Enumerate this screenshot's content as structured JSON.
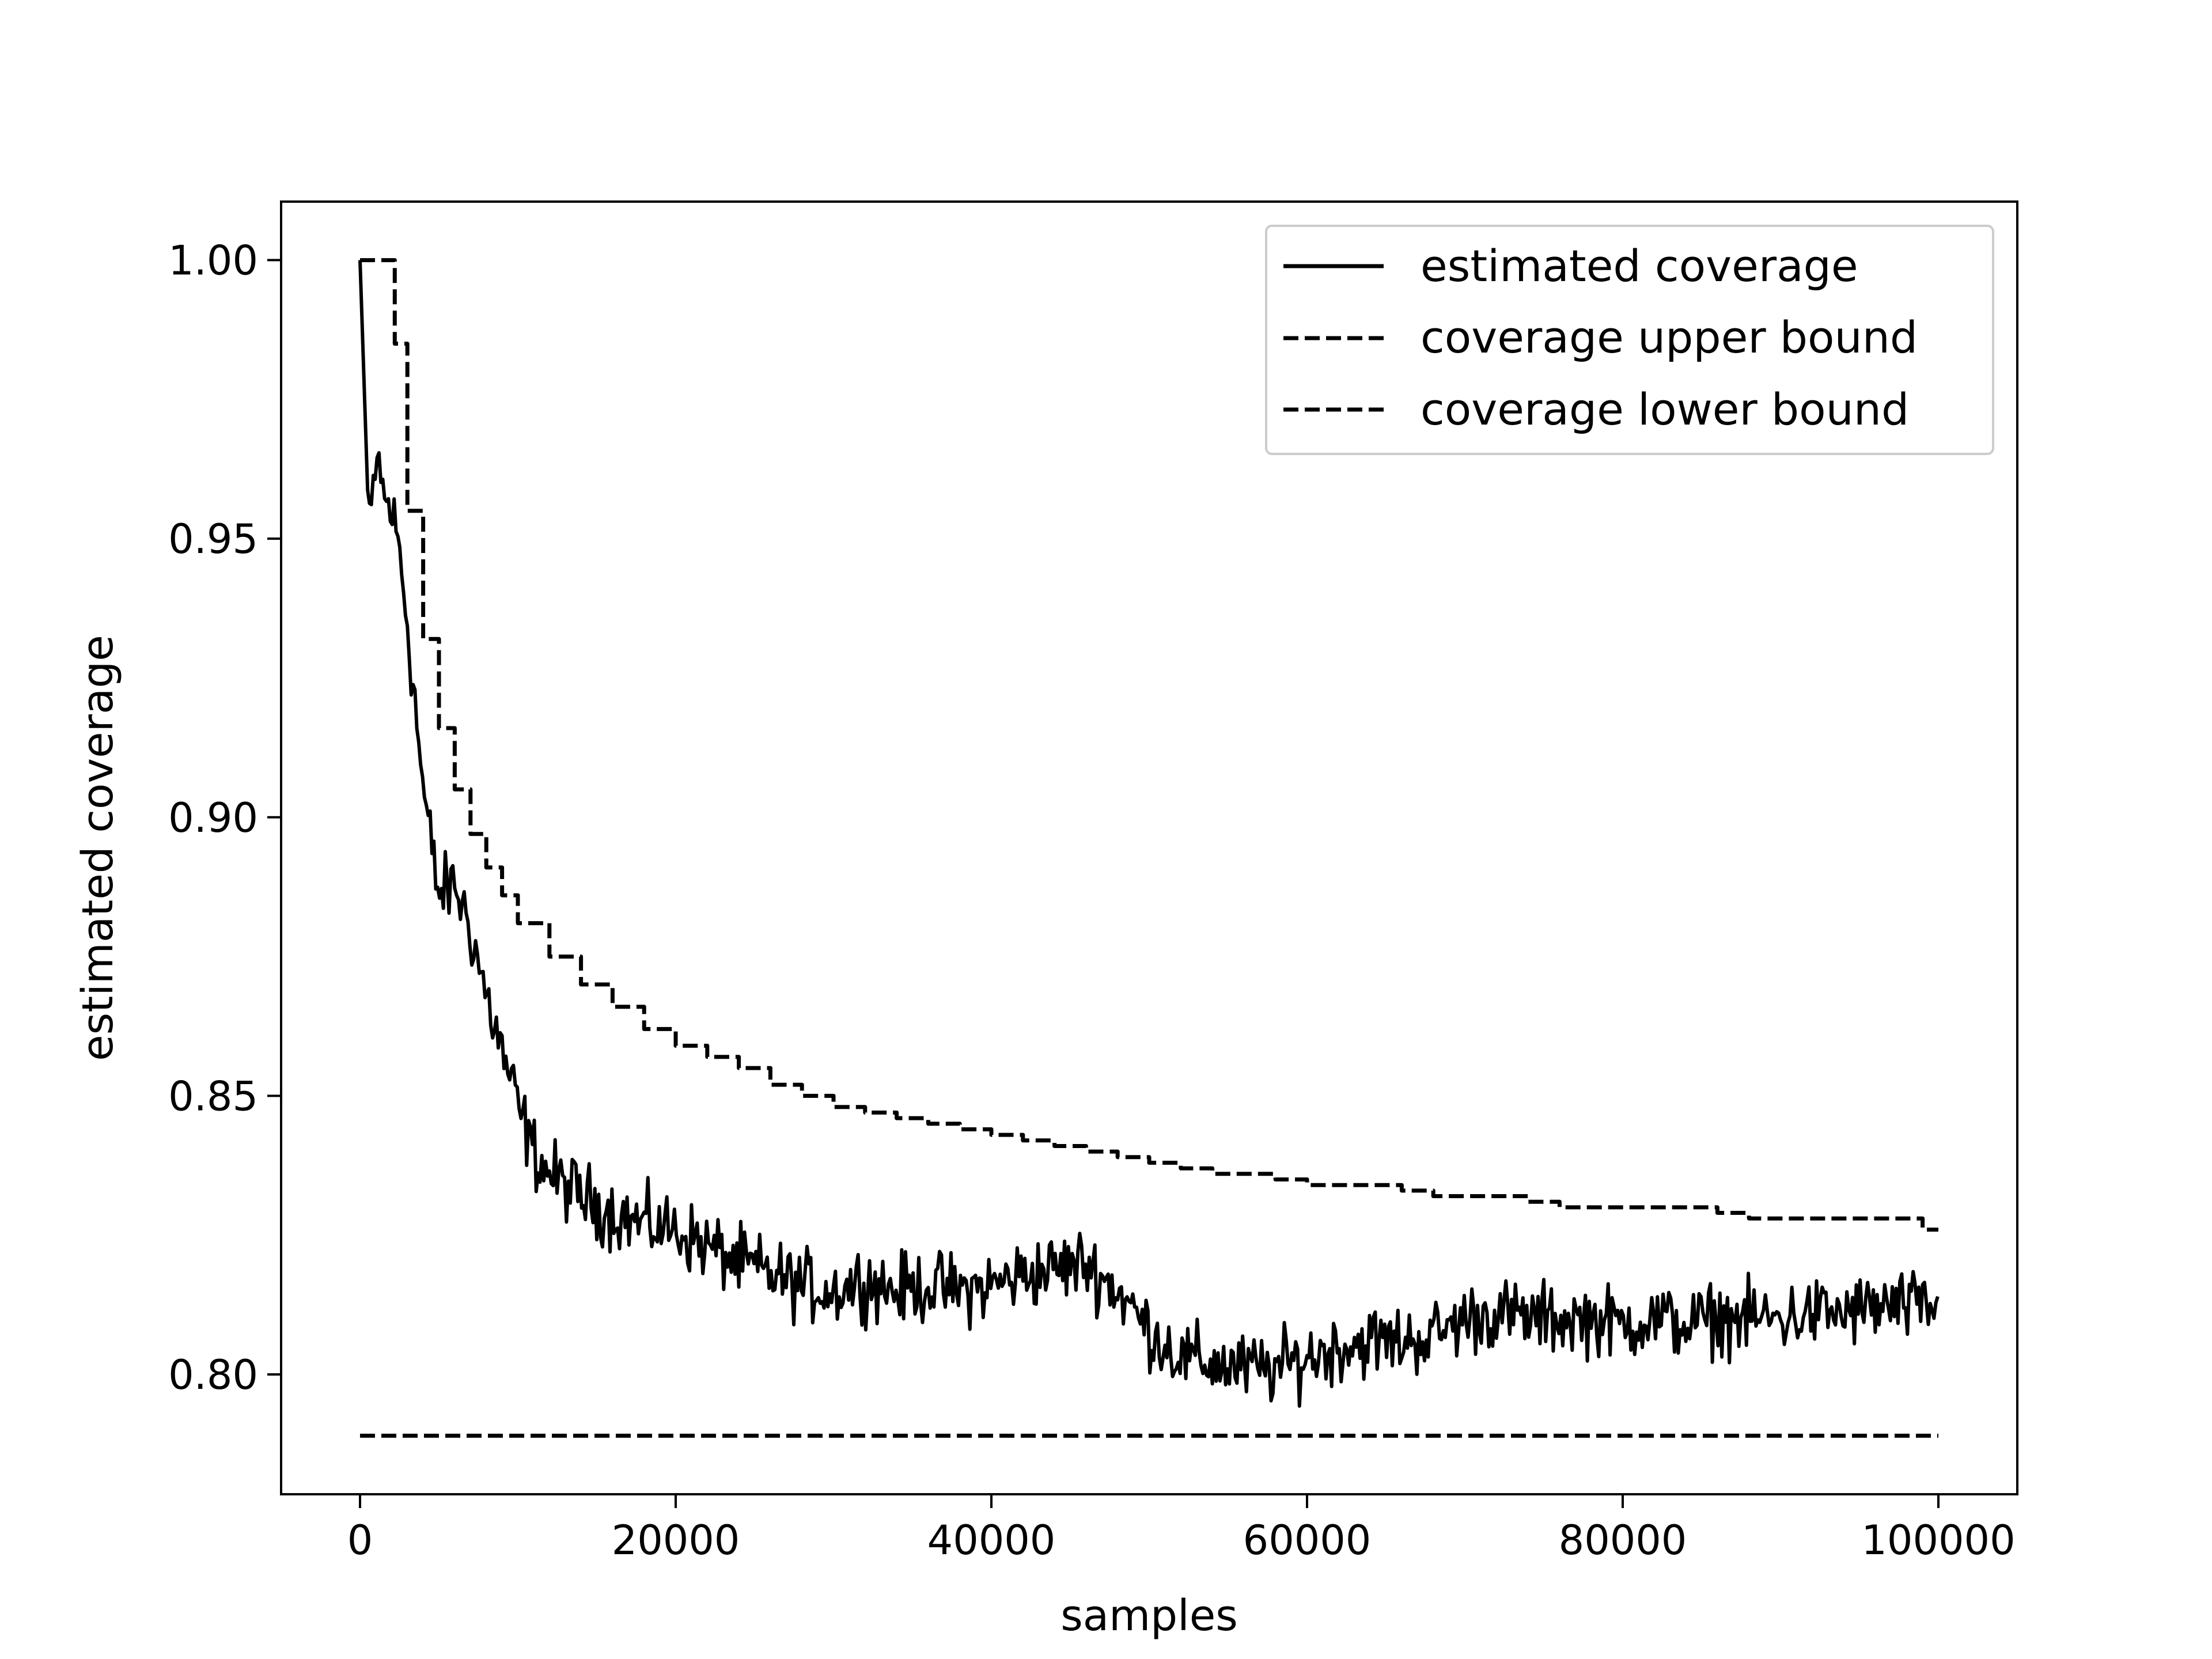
{
  "chart_data": {
    "type": "line",
    "title": "",
    "xlabel": "samples",
    "ylabel": "estimated coverage",
    "xlim": [
      -5000,
      105000
    ],
    "ylim": [
      0.7785,
      1.0105
    ],
    "xticks": [
      0,
      20000,
      40000,
      60000,
      80000,
      100000
    ],
    "xtick_labels": [
      "0",
      "20000",
      "40000",
      "60000",
      "80000",
      "100000"
    ],
    "yticks": [
      0.8,
      0.85,
      0.9,
      0.95,
      1.0
    ],
    "ytick_labels": [
      "0.80",
      "0.85",
      "0.90",
      "0.95",
      "1.00"
    ],
    "grid": false,
    "legend_position": "top-right",
    "colors": {
      "line": "#000000",
      "frame": "#000000",
      "background": "#ffffff"
    },
    "series": [
      {
        "name": "estimated coverage",
        "style": "solid",
        "noise": 0.0045,
        "x": [
          0,
          500,
          800,
          1200,
          1500,
          2000,
          2500,
          3000,
          3500,
          4000,
          4500,
          5000,
          5500,
          6000,
          7000,
          8000,
          9000,
          10000,
          11000,
          12000,
          14000,
          16000,
          18000,
          20000,
          22000,
          24000,
          26000,
          28000,
          30000,
          32000,
          34000,
          36000,
          38000,
          40000,
          42000,
          44000,
          46000,
          48000,
          50000,
          52000,
          54000,
          56000,
          58000,
          60000,
          62000,
          64000,
          66000,
          68000,
          70000,
          72000,
          74000,
          76000,
          78000,
          80000,
          82000,
          84000,
          86000,
          88000,
          90000,
          92000,
          94000,
          96000,
          98000,
          100000
        ],
        "y": [
          1.0,
          0.957,
          0.955,
          0.965,
          0.957,
          0.955,
          0.948,
          0.935,
          0.92,
          0.905,
          0.895,
          0.886,
          0.887,
          0.888,
          0.88,
          0.868,
          0.858,
          0.848,
          0.84,
          0.836,
          0.832,
          0.829,
          0.827,
          0.826,
          0.823,
          0.82,
          0.818,
          0.816,
          0.815,
          0.817,
          0.815,
          0.816,
          0.815,
          0.816,
          0.818,
          0.819,
          0.82,
          0.815,
          0.808,
          0.803,
          0.802,
          0.801,
          0.801,
          0.803,
          0.805,
          0.806,
          0.806,
          0.807,
          0.81,
          0.811,
          0.81,
          0.81,
          0.81,
          0.809,
          0.81,
          0.809,
          0.81,
          0.81,
          0.81,
          0.811,
          0.811,
          0.812,
          0.812,
          0.812
        ]
      },
      {
        "name": "coverage upper bound",
        "style": "dashed",
        "noise": 0,
        "x": [
          0,
          1000,
          1800,
          2200,
          3000,
          4000,
          5000,
          6000,
          7000,
          8000,
          9000,
          10000,
          12000,
          14000,
          16000,
          18000,
          20000,
          22000,
          24000,
          26000,
          28000,
          30000,
          32000,
          34000,
          36000,
          38000,
          40000,
          42000,
          44000,
          46000,
          48000,
          50000,
          52000,
          54000,
          56000,
          58000,
          60000,
          62000,
          64000,
          66000,
          68000,
          70000,
          72000,
          74000,
          76000,
          78000,
          80000,
          82000,
          84000,
          86000,
          88000,
          90000,
          92000,
          94000,
          96000,
          98000,
          99000,
          100000
        ],
        "y": [
          1.0,
          1.0,
          1.0,
          0.985,
          0.955,
          0.932,
          0.916,
          0.905,
          0.897,
          0.891,
          0.886,
          0.881,
          0.875,
          0.87,
          0.866,
          0.862,
          0.859,
          0.857,
          0.855,
          0.852,
          0.85,
          0.848,
          0.847,
          0.846,
          0.845,
          0.844,
          0.843,
          0.842,
          0.841,
          0.84,
          0.839,
          0.838,
          0.837,
          0.836,
          0.836,
          0.835,
          0.834,
          0.834,
          0.834,
          0.833,
          0.832,
          0.832,
          0.832,
          0.831,
          0.83,
          0.83,
          0.83,
          0.83,
          0.83,
          0.829,
          0.828,
          0.828,
          0.828,
          0.828,
          0.828,
          0.828,
          0.826,
          0.826
        ]
      },
      {
        "name": "coverage lower bound",
        "style": "dashed",
        "noise": 0,
        "x": [
          0,
          100000
        ],
        "y": [
          0.789,
          0.789
        ]
      }
    ]
  }
}
